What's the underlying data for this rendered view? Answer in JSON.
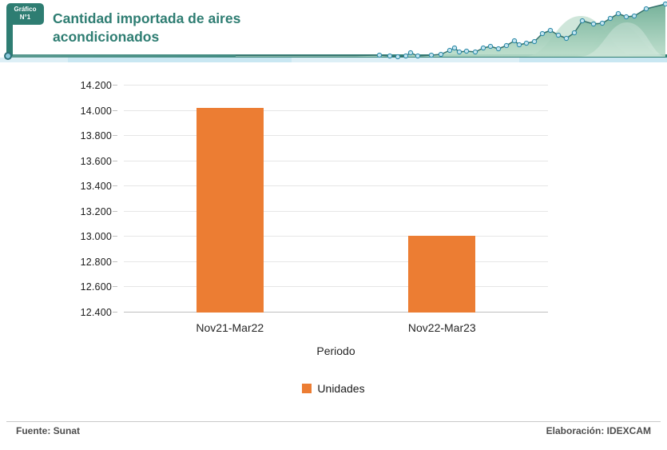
{
  "header": {
    "badge_line1": "Gráfico",
    "badge_line2": "N°1",
    "title": "Cantidad importada de aires acondicionados",
    "accent_color": "#2E7D72"
  },
  "chart_data": {
    "type": "bar",
    "title": "Cantidad importada de aires acondicionados",
    "categories": [
      "Nov21-Mar22",
      "Nov22-Mar23"
    ],
    "series": [
      {
        "name": "Unidades",
        "values": [
          14020,
          13010
        ],
        "color": "#EC7D33"
      }
    ],
    "xlabel": "Periodo",
    "ylabel": "",
    "ylim": [
      12400,
      14200
    ],
    "ytick_step": 200,
    "ytick_labels": [
      "12.400",
      "12.600",
      "12.800",
      "13.000",
      "13.200",
      "13.400",
      "13.600",
      "13.800",
      "14.000",
      "14.200"
    ],
    "grid": true,
    "legend_position": "bottom"
  },
  "footer": {
    "source": "Fuente: Sunat",
    "elaboration": "Elaboración: IDEXCAM"
  },
  "colors": {
    "bar": "#EC7D33",
    "gridline": "#E6E6E6",
    "axis_line": "#BFBFBF",
    "teal_accent": "#2E7D72",
    "header_band_blue": "#C9E7F2",
    "footer_text": "#4D4D4D"
  }
}
